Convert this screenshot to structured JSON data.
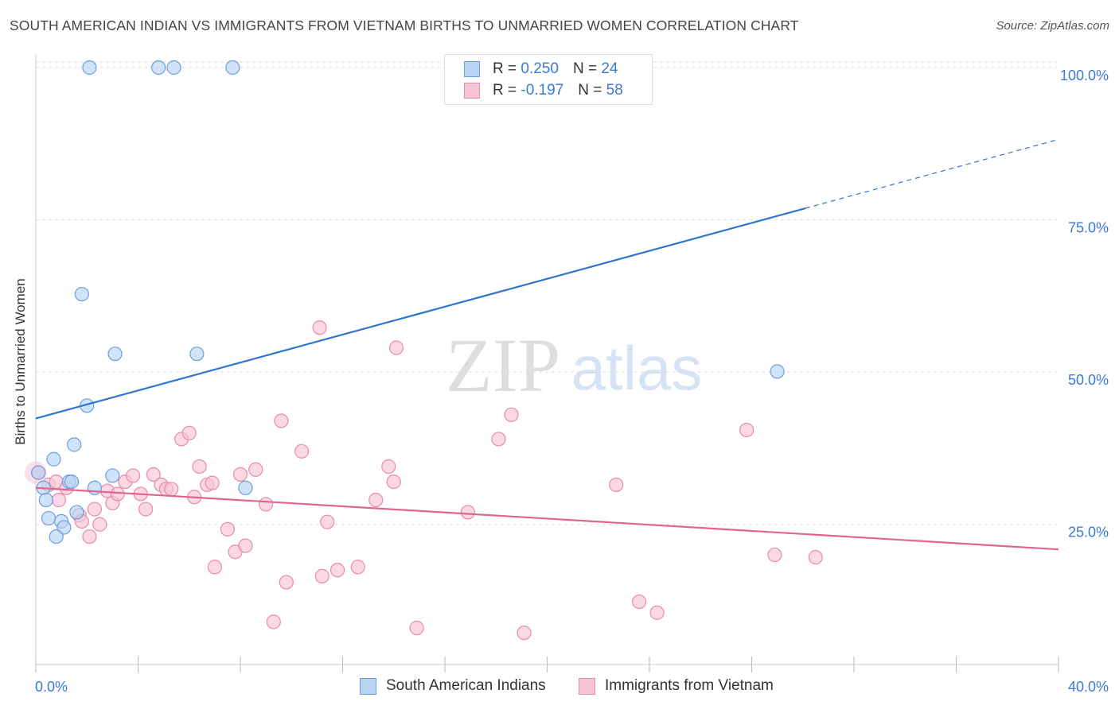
{
  "title": "SOUTH AMERICAN INDIAN VS IMMIGRANTS FROM VIETNAM BIRTHS TO UNMARRIED WOMEN CORRELATION CHART",
  "source": "Source: ZipAtlas.com",
  "watermark": {
    "zip": "ZIP",
    "atlas": "atlas"
  },
  "colors": {
    "blue_fill": "#b8d4f5",
    "blue_stroke": "#6a9fe0",
    "blue_line": "#2f74d0",
    "pink_fill": "#f8c5d6",
    "pink_stroke": "#e98aab",
    "pink_line": "#e06590",
    "axis_text": "#3a7bd5",
    "grid": "#dddddd"
  },
  "legend": {
    "rows": [
      {
        "r_label": "R =",
        "r_value": "0.250",
        "n_label": "N =",
        "n_value": "24"
      },
      {
        "r_label": "R =",
        "r_value": "-0.197",
        "n_label": "N =",
        "n_value": "58"
      }
    ]
  },
  "bottom_legend": [
    "South American Indians",
    "Immigrants from Vietnam"
  ],
  "chart_data": {
    "type": "scatter",
    "title": "SOUTH AMERICAN INDIAN VS IMMIGRANTS FROM VIETNAM BIRTHS TO UNMARRIED WOMEN CORRELATION CHART",
    "xlabel": "",
    "ylabel": "Births to Unmarried Women",
    "xlim": [
      0,
      40
    ],
    "ylim": [
      2,
      103
    ],
    "x_tick_labels": [
      "0.0%",
      "40.0%"
    ],
    "y_ticks": [
      25,
      50,
      75,
      100
    ],
    "y_tick_labels": [
      "25.0%",
      "50.0%",
      "75.0%",
      "100.0%"
    ],
    "grid": "horizontal dashed",
    "legend_position": "top-center",
    "series": [
      {
        "name": "South American Indians",
        "r": 0.25,
        "n": 24,
        "trend": {
          "x": [
            0,
            30.1
          ],
          "y": [
            42.4,
            76.9
          ],
          "dashed_to": [
            40,
            88.2
          ]
        },
        "points": [
          [
            2.1,
            100
          ],
          [
            4.8,
            100
          ],
          [
            5.4,
            100
          ],
          [
            7.7,
            100
          ],
          [
            1.8,
            62.8
          ],
          [
            3.1,
            53.0
          ],
          [
            6.3,
            53.0
          ],
          [
            29.0,
            50.1
          ],
          [
            2.0,
            44.5
          ],
          [
            1.5,
            38.1
          ],
          [
            0.7,
            35.7
          ],
          [
            3.0,
            33.0
          ],
          [
            1.3,
            32.0
          ],
          [
            1.4,
            32.0
          ],
          [
            0.3,
            31.0
          ],
          [
            2.3,
            31.0
          ],
          [
            8.2,
            31.0
          ],
          [
            0.4,
            29.0
          ],
          [
            1.6,
            27.0
          ],
          [
            0.5,
            26.0
          ],
          [
            1.0,
            25.5
          ],
          [
            1.1,
            24.5
          ],
          [
            0.8,
            23.0
          ],
          [
            0.1,
            33.5
          ]
        ]
      },
      {
        "name": "Immigrants from Vietnam",
        "r": -0.197,
        "n": 58,
        "trend": {
          "x": [
            0,
            40
          ],
          "y": [
            31.0,
            20.9
          ]
        },
        "points": [
          [
            0.1,
            33.5
          ],
          [
            0.5,
            31.5
          ],
          [
            0.8,
            32.0
          ],
          [
            1.2,
            31.0
          ],
          [
            0.9,
            29.0
          ],
          [
            1.7,
            26.5
          ],
          [
            1.8,
            25.5
          ],
          [
            2.1,
            23.0
          ],
          [
            2.3,
            27.5
          ],
          [
            2.5,
            25.0
          ],
          [
            2.8,
            30.5
          ],
          [
            3.0,
            28.5
          ],
          [
            3.2,
            30.0
          ],
          [
            3.5,
            32.0
          ],
          [
            3.8,
            33.0
          ],
          [
            4.1,
            30.0
          ],
          [
            4.3,
            27.5
          ],
          [
            4.6,
            33.2
          ],
          [
            4.9,
            31.5
          ],
          [
            5.1,
            30.8
          ],
          [
            5.3,
            30.8
          ],
          [
            5.7,
            39.0
          ],
          [
            6.0,
            40.0
          ],
          [
            6.2,
            29.5
          ],
          [
            6.4,
            34.5
          ],
          [
            6.7,
            31.5
          ],
          [
            6.9,
            31.8
          ],
          [
            7.0,
            18.0
          ],
          [
            7.5,
            24.2
          ],
          [
            7.8,
            20.5
          ],
          [
            8.0,
            33.2
          ],
          [
            8.2,
            21.5
          ],
          [
            8.6,
            34.0
          ],
          [
            9.0,
            28.3
          ],
          [
            9.3,
            9.0
          ],
          [
            9.6,
            42.0
          ],
          [
            9.8,
            15.5
          ],
          [
            10.4,
            37.0
          ],
          [
            11.1,
            57.3
          ],
          [
            11.2,
            16.5
          ],
          [
            11.4,
            25.4
          ],
          [
            11.8,
            17.5
          ],
          [
            12.6,
            18.0
          ],
          [
            13.3,
            29.0
          ],
          [
            13.8,
            34.5
          ],
          [
            14.0,
            32.0
          ],
          [
            14.1,
            54.0
          ],
          [
            14.9,
            8.0
          ],
          [
            16.9,
            27.0
          ],
          [
            18.1,
            39.0
          ],
          [
            18.6,
            43.0
          ],
          [
            19.1,
            7.2
          ],
          [
            22.7,
            31.5
          ],
          [
            23.6,
            12.3
          ],
          [
            24.3,
            10.5
          ],
          [
            27.8,
            40.5
          ],
          [
            28.9,
            20.0
          ],
          [
            30.5,
            19.6
          ]
        ]
      }
    ]
  }
}
